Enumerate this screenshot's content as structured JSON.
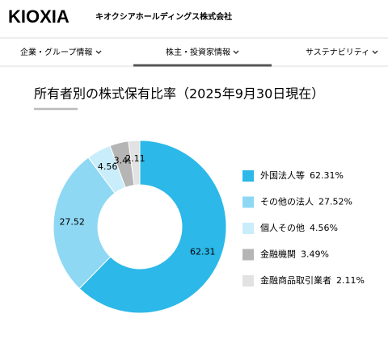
{
  "header": {
    "logo": "KIOXIA",
    "company": "キオクシアホールディングス株式会社"
  },
  "nav": {
    "items": [
      "企業・グループ情報",
      "株主・投資家情報",
      "サステナビリティ"
    ]
  },
  "chart_data": {
    "type": "pie",
    "title": "所有者別の株式保有比率（2025年9月30日現在）",
    "categories": [
      "外国法人等",
      "その他の法人",
      "個人その他",
      "金融機関",
      "金融商品取引業者"
    ],
    "values": [
      62.31,
      27.52,
      4.56,
      3.49,
      2.11
    ],
    "value_labels": [
      "62.31%",
      "27.52%",
      "4.56%",
      "3.49%",
      "2.11%"
    ],
    "colors": [
      "#2cb8e8",
      "#8ed8f4",
      "#c9edfa",
      "#b5b5b5",
      "#e2e2e2"
    ],
    "legend": "right"
  }
}
